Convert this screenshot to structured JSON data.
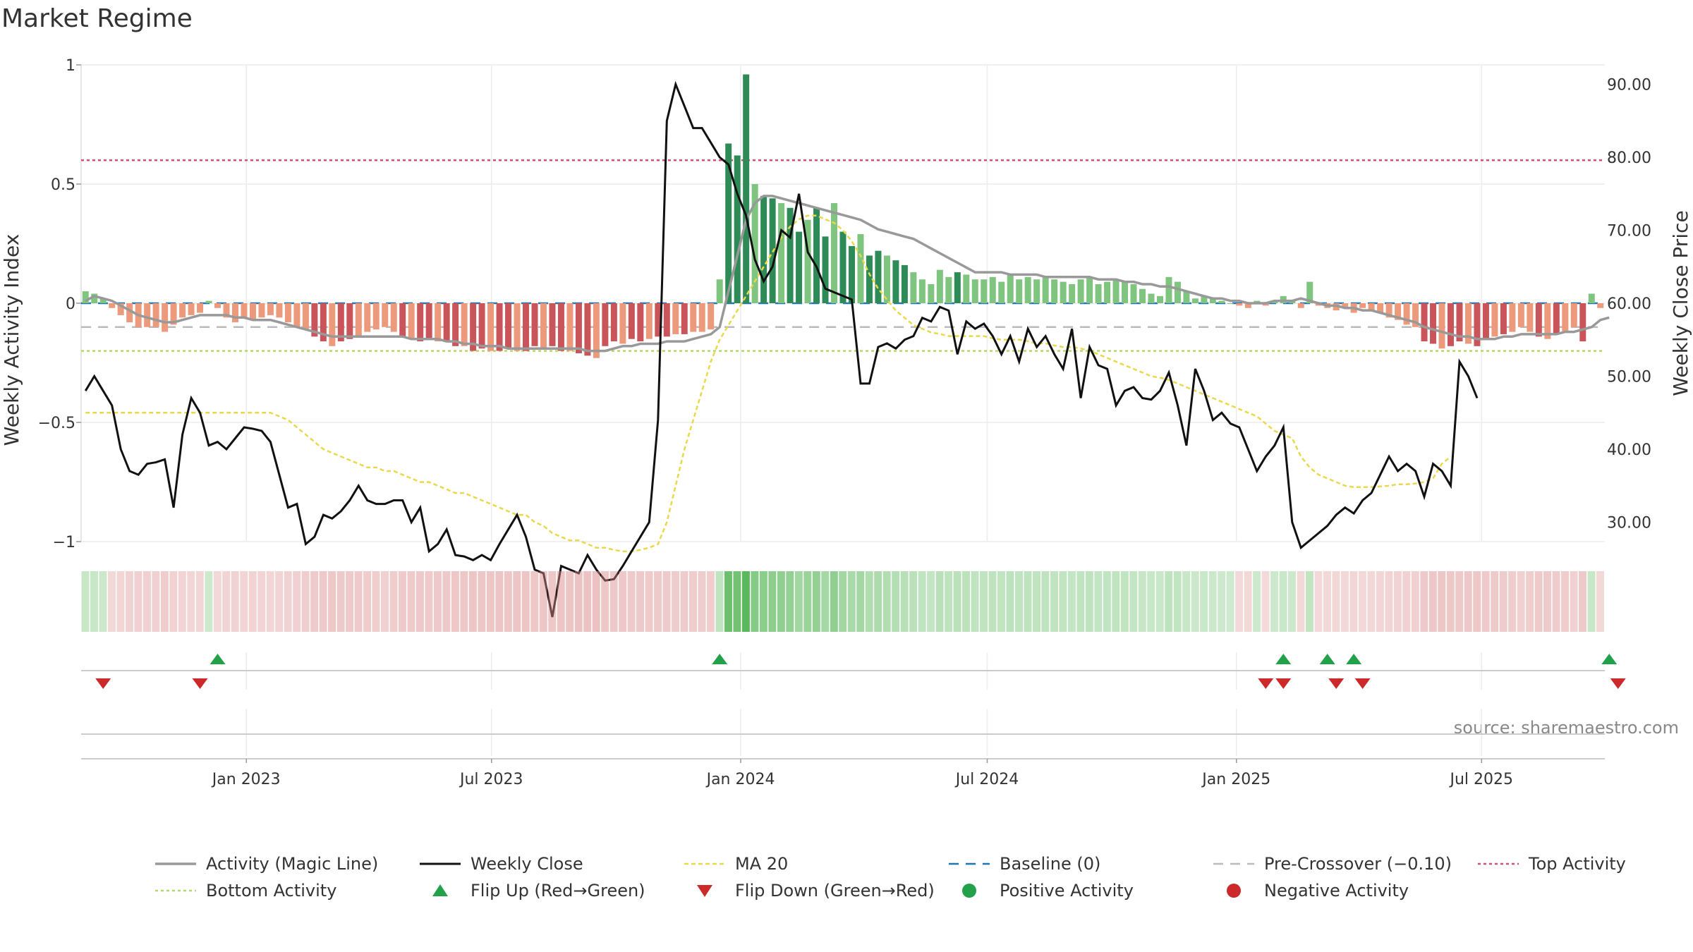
{
  "chart_data": {
    "type": "bar",
    "title": "Market Regime",
    "ylabel_left": "Weekly Activity Index",
    "ylabel_right": "Weekly Close Price",
    "source": "source: sharemaestro.com",
    "ylim_left": [
      -1,
      1
    ],
    "ylim_right": [
      20,
      92
    ],
    "yticks_left": [
      "1",
      "0.5",
      "0",
      "−0.5",
      "−1"
    ],
    "yticks_right": [
      "90.00",
      "80.00",
      "70.00",
      "60.00",
      "50.00",
      "40.00",
      "30.00"
    ],
    "xticks": [
      "Jan 2023",
      "Jul 2023",
      "Jan 2024",
      "Jul 2024",
      "Jan 2025",
      "Jul 2025"
    ],
    "x_start": "2022-09-01",
    "x_end": "2025-09-30",
    "reference_lines": {
      "top_activity": 0.6,
      "baseline": 0,
      "pre_crossover": -0.1,
      "bottom_activity": -0.2
    },
    "colors": {
      "pos_dark": "#2e8b57",
      "pos_light": "#7fc47f",
      "neg_dark": "#c9555a",
      "neg_light": "#ec9a7b",
      "close": "#111111",
      "magic": "#999999",
      "ma20": "#e8d84a",
      "baseline": "#1f77b4",
      "pre": "#bbbbbb",
      "top": "#d45070",
      "bottom": "#b5d86a",
      "flip_up": "#22a04a",
      "flip_down": "#cc2a2a",
      "strip_pos": "#5cb85c",
      "strip_neg": "#d98585"
    },
    "series": [
      {
        "name": "Weekly Activity",
        "values": [
          0.05,
          0.04,
          0.02,
          -0.02,
          -0.05,
          -0.08,
          -0.1,
          -0.1,
          -0.1,
          -0.12,
          -0.09,
          -0.06,
          -0.05,
          -0.04,
          0.01,
          -0.02,
          -0.06,
          -0.08,
          -0.06,
          -0.07,
          -0.06,
          -0.05,
          -0.06,
          -0.08,
          -0.1,
          -0.11,
          -0.14,
          -0.16,
          -0.18,
          -0.16,
          -0.15,
          -0.14,
          -0.12,
          -0.11,
          -0.1,
          -0.12,
          -0.14,
          -0.15,
          -0.16,
          -0.15,
          -0.16,
          -0.16,
          -0.18,
          -0.18,
          -0.2,
          -0.19,
          -0.2,
          -0.2,
          -0.19,
          -0.2,
          -0.2,
          -0.18,
          -0.19,
          -0.18,
          -0.2,
          -0.2,
          -0.21,
          -0.22,
          -0.23,
          -0.18,
          -0.16,
          -0.17,
          -0.15,
          -0.16,
          -0.15,
          -0.14,
          -0.14,
          -0.13,
          -0.13,
          -0.12,
          -0.12,
          -0.11,
          0.1,
          0.67,
          0.62,
          0.96,
          0.5,
          0.45,
          0.44,
          0.42,
          0.4,
          0.3,
          0.35,
          0.4,
          0.28,
          0.42,
          0.3,
          0.24,
          0.29,
          0.2,
          0.22,
          0.2,
          0.18,
          0.16,
          0.13,
          0.1,
          0.08,
          0.14,
          0.11,
          0.13,
          0.12,
          0.1,
          0.1,
          0.11,
          0.09,
          0.12,
          0.1,
          0.11,
          0.1,
          0.11,
          0.1,
          0.09,
          0.08,
          0.1,
          0.11,
          0.08,
          0.09,
          0.1,
          0.09,
          0.08,
          0.06,
          0.04,
          0.03,
          0.11,
          0.09,
          0.05,
          0.02,
          0.03,
          0.02,
          0.01,
          0,
          -0.01,
          -0.02,
          0.01,
          -0.01,
          0.01,
          0.03,
          0.01,
          -0.02,
          0.09,
          -0.01,
          -0.02,
          -0.03,
          -0.02,
          -0.04,
          -0.02,
          -0.03,
          -0.04,
          -0.06,
          -0.07,
          -0.09,
          -0.1,
          -0.16,
          -0.17,
          -0.19,
          -0.18,
          -0.16,
          -0.17,
          -0.18,
          -0.15,
          -0.14,
          -0.13,
          -0.12,
          -0.1,
          -0.12,
          -0.14,
          -0.15,
          -0.13,
          -0.12,
          -0.1,
          -0.16,
          0.04,
          -0.02
        ]
      },
      {
        "name": "Activity (Magic Line)",
        "values": [
          0.01,
          0.03,
          0.02,
          0.01,
          -0.01,
          -0.03,
          -0.05,
          -0.06,
          -0.07,
          -0.08,
          -0.08,
          -0.07,
          -0.06,
          -0.05,
          -0.05,
          -0.05,
          -0.05,
          -0.06,
          -0.06,
          -0.07,
          -0.07,
          -0.07,
          -0.08,
          -0.09,
          -0.1,
          -0.11,
          -0.12,
          -0.13,
          -0.14,
          -0.14,
          -0.14,
          -0.14,
          -0.14,
          -0.14,
          -0.14,
          -0.14,
          -0.14,
          -0.15,
          -0.15,
          -0.15,
          -0.15,
          -0.16,
          -0.16,
          -0.17,
          -0.17,
          -0.18,
          -0.18,
          -0.18,
          -0.19,
          -0.19,
          -0.19,
          -0.19,
          -0.19,
          -0.19,
          -0.19,
          -0.19,
          -0.19,
          -0.2,
          -0.2,
          -0.2,
          -0.19,
          -0.18,
          -0.18,
          -0.17,
          -0.17,
          -0.17,
          -0.16,
          -0.16,
          -0.16,
          -0.15,
          -0.14,
          -0.13,
          -0.1,
          0.05,
          0.2,
          0.35,
          0.42,
          0.45,
          0.45,
          0.44,
          0.43,
          0.42,
          0.41,
          0.4,
          0.39,
          0.38,
          0.37,
          0.36,
          0.35,
          0.33,
          0.31,
          0.3,
          0.29,
          0.28,
          0.27,
          0.25,
          0.23,
          0.21,
          0.19,
          0.17,
          0.15,
          0.13,
          0.13,
          0.13,
          0.13,
          0.12,
          0.12,
          0.12,
          0.12,
          0.11,
          0.11,
          0.11,
          0.11,
          0.11,
          0.11,
          0.1,
          0.1,
          0.1,
          0.09,
          0.09,
          0.08,
          0.08,
          0.07,
          0.07,
          0.06,
          0.05,
          0.04,
          0.03,
          0.02,
          0.02,
          0.01,
          0.01,
          0,
          0,
          0,
          0.01,
          0.01,
          0.01,
          0.02,
          0.01,
          0,
          -0.01,
          -0.01,
          -0.02,
          -0.02,
          -0.03,
          -0.03,
          -0.04,
          -0.05,
          -0.06,
          -0.07,
          -0.08,
          -0.1,
          -0.11,
          -0.12,
          -0.13,
          -0.14,
          -0.14,
          -0.15,
          -0.15,
          -0.15,
          -0.14,
          -0.14,
          -0.13,
          -0.13,
          -0.13,
          -0.13,
          -0.13,
          -0.12,
          -0.12,
          -0.11,
          -0.1,
          -0.07,
          -0.06
        ]
      },
      {
        "name": "Weekly Close",
        "values": [
          48,
          50,
          48,
          46,
          40,
          37,
          36.5,
          38,
          38.2,
          38.6,
          32,
          42,
          47,
          45,
          40.5,
          41,
          40,
          41.5,
          43,
          42.8,
          42.5,
          41,
          36.5,
          32,
          32.5,
          27,
          28,
          31,
          30.5,
          31.5,
          33,
          35,
          33,
          32.5,
          32.5,
          33,
          33,
          30,
          32,
          26,
          27,
          29,
          25.5,
          25.3,
          24.8,
          25.5,
          24.8,
          27,
          29,
          31,
          28,
          23.5,
          23,
          17,
          24,
          23.5,
          23,
          25.5,
          23.5,
          22,
          22.2,
          24,
          26,
          28,
          30,
          44,
          85,
          90,
          87,
          84,
          84,
          82,
          80,
          79,
          75,
          72,
          66,
          63,
          65,
          70,
          69,
          75,
          67,
          65,
          62,
          61.5,
          61,
          60.5,
          49,
          49,
          54,
          54.5,
          53.8,
          55,
          55.5,
          58,
          57.5,
          59.5,
          59,
          53,
          57.5,
          56.5,
          57.2,
          55.5,
          53,
          55.5,
          52,
          56.5,
          54,
          55.5,
          53,
          51,
          56.5,
          47,
          54,
          51.5,
          51,
          46,
          48,
          48.5,
          47,
          46.8,
          48,
          50.5,
          46,
          40.5,
          51,
          48,
          44,
          45,
          43.5,
          43,
          40,
          37,
          39,
          40.5,
          43,
          30,
          26.5,
          27.5,
          28.5,
          29.5,
          31,
          32,
          31.2,
          33,
          34,
          36.5,
          39,
          37,
          38,
          37,
          33.5,
          38,
          37,
          35,
          52,
          50,
          47
        ]
      },
      {
        "name": "MA 20",
        "values": [
          45,
          45,
          45,
          45,
          45,
          45,
          45,
          45,
          45,
          45,
          45,
          45,
          45,
          45,
          45,
          45,
          45,
          45,
          45,
          45,
          45,
          45,
          44.5,
          44,
          43,
          42,
          41,
          40,
          39.5,
          39,
          38.5,
          38,
          37.5,
          37.5,
          37,
          37,
          36.5,
          36,
          35.5,
          35.5,
          35,
          34.5,
          34,
          34,
          33.5,
          33,
          32.5,
          32,
          31.5,
          31,
          31,
          30,
          29.5,
          28.5,
          28,
          27.5,
          27.5,
          27,
          26.5,
          26.5,
          26.2,
          26,
          26,
          26.2,
          26.5,
          27,
          30,
          35,
          40,
          44,
          48,
          52,
          55,
          57,
          59,
          61,
          63,
          65,
          67,
          69,
          70.5,
          71.5,
          72,
          72,
          71.5,
          71,
          70,
          68.5,
          66.5,
          64,
          62,
          60.5,
          59,
          58,
          57,
          56.5,
          56,
          55.8,
          55.5,
          55.5,
          55.5,
          55.5,
          55.5,
          55.2,
          55,
          55,
          55,
          54.8,
          54.5,
          54.5,
          54.2,
          54,
          54,
          53.8,
          53.5,
          53,
          52.5,
          52,
          51.5,
          51,
          50.5,
          50,
          49.8,
          49.5,
          49,
          48.5,
          48,
          47.5,
          47,
          46.5,
          46,
          45.5,
          45,
          44.5,
          43.5,
          42.5,
          42,
          41.5,
          39,
          37.5,
          36.5,
          36,
          35.5,
          35,
          34.8,
          34.8,
          34.8,
          34.9,
          35,
          35.2,
          35.2,
          35.3,
          35.5,
          36,
          38,
          39
        ]
      }
    ],
    "flips_up": [
      15,
      72,
      136,
      141,
      144,
      173
    ],
    "flips_down": [
      2,
      13,
      134,
      136,
      142,
      145,
      174
    ],
    "legend": [
      [
        "Activity (Magic Line)",
        "Weekly Close",
        "MA 20",
        "Baseline (0)",
        "Pre-Crossover (−0.10)",
        "Top Activity"
      ],
      [
        "Bottom Activity",
        "Flip Up (Red→Green)",
        "Flip Down (Green→Red)",
        "Positive Activity",
        "Negative Activity"
      ]
    ]
  }
}
